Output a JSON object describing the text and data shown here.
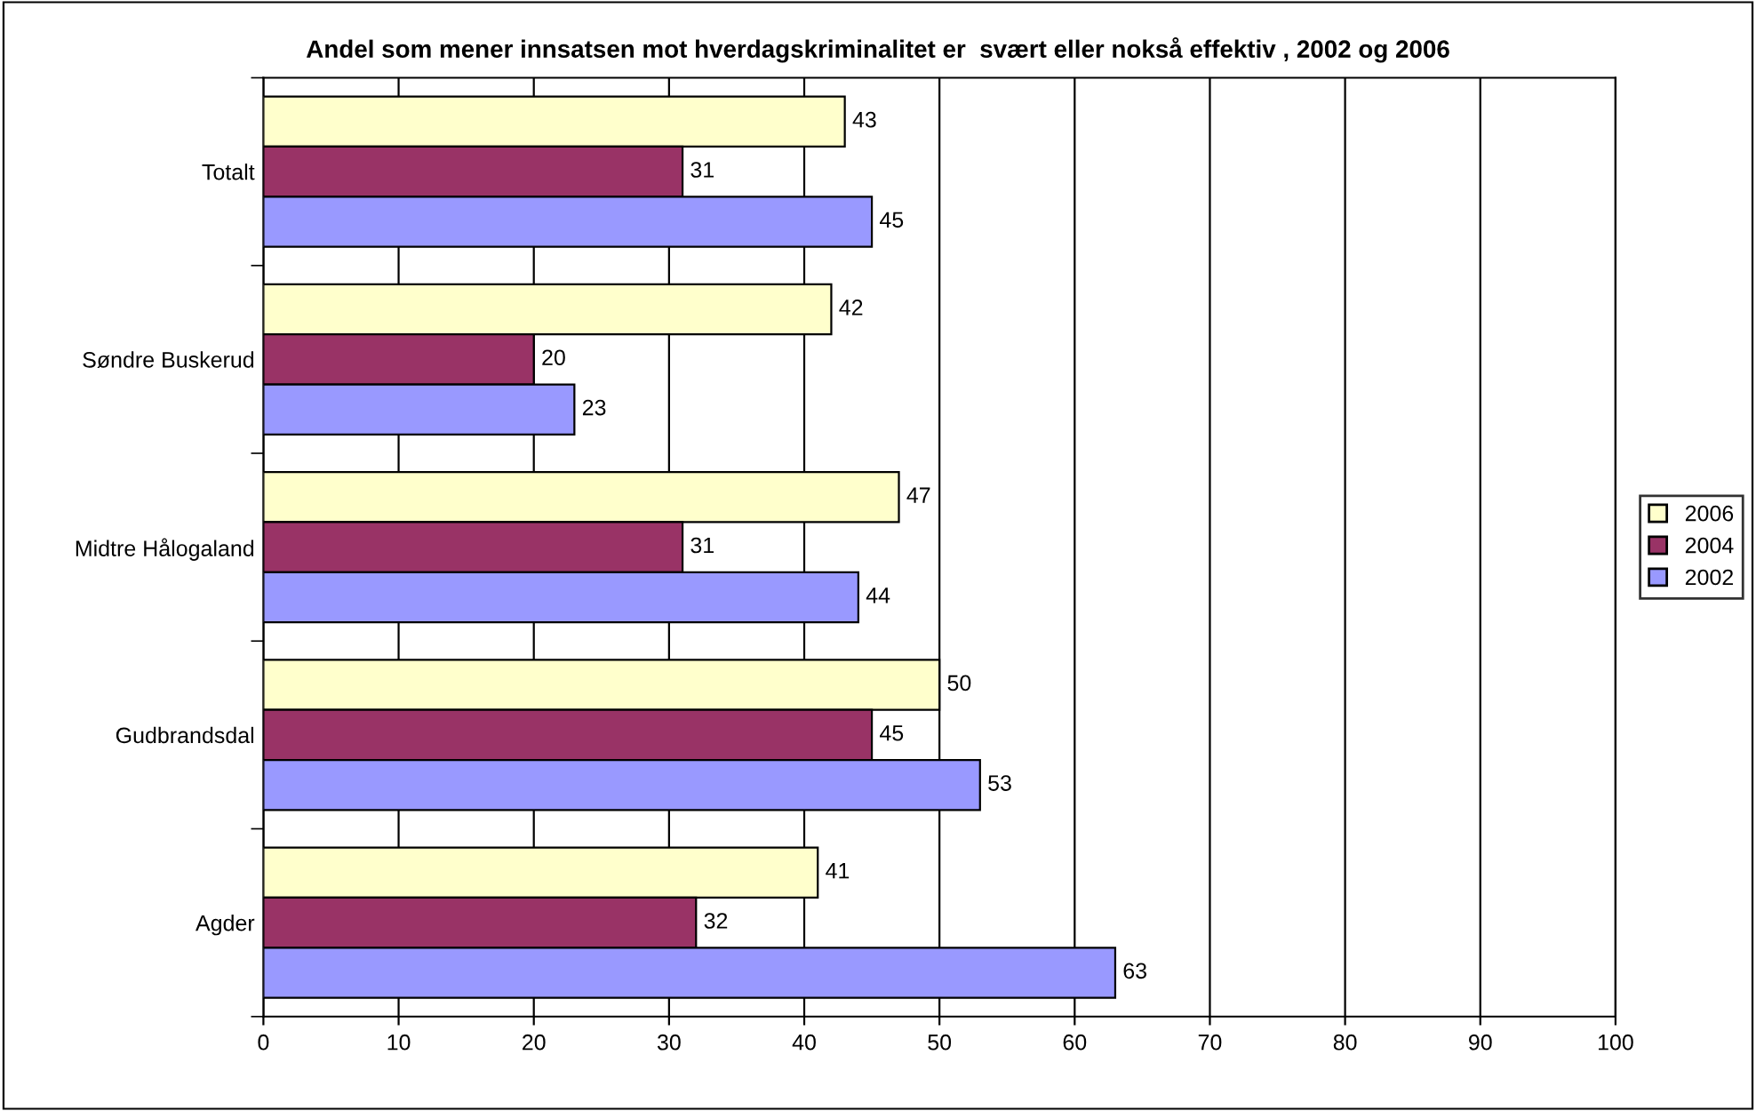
{
  "chart_data": {
    "type": "bar",
    "orientation": "horizontal",
    "title": "Andel som mener innsatsen mot hverdagskriminalitet er  svært eller nokså effektiv , 2002 og 2006",
    "categories": [
      "Totalt",
      "Søndre Buskerud",
      "Midtre Hålogaland",
      "Gudbrandsdal",
      "Agder"
    ],
    "series": [
      {
        "name": "2006",
        "color": "#ffffcc",
        "values": [
          43,
          42,
          47,
          50,
          41
        ]
      },
      {
        "name": "2004",
        "color": "#993366",
        "values": [
          31,
          20,
          31,
          45,
          32
        ]
      },
      {
        "name": "2002",
        "color": "#9999ff",
        "values": [
          45,
          23,
          44,
          53,
          63
        ]
      }
    ],
    "xlim": [
      0,
      100
    ],
    "xticks": [
      0,
      10,
      20,
      30,
      40,
      50,
      60,
      70,
      80,
      90,
      100
    ],
    "grid": "x",
    "legend": "right",
    "data_labels": true
  }
}
